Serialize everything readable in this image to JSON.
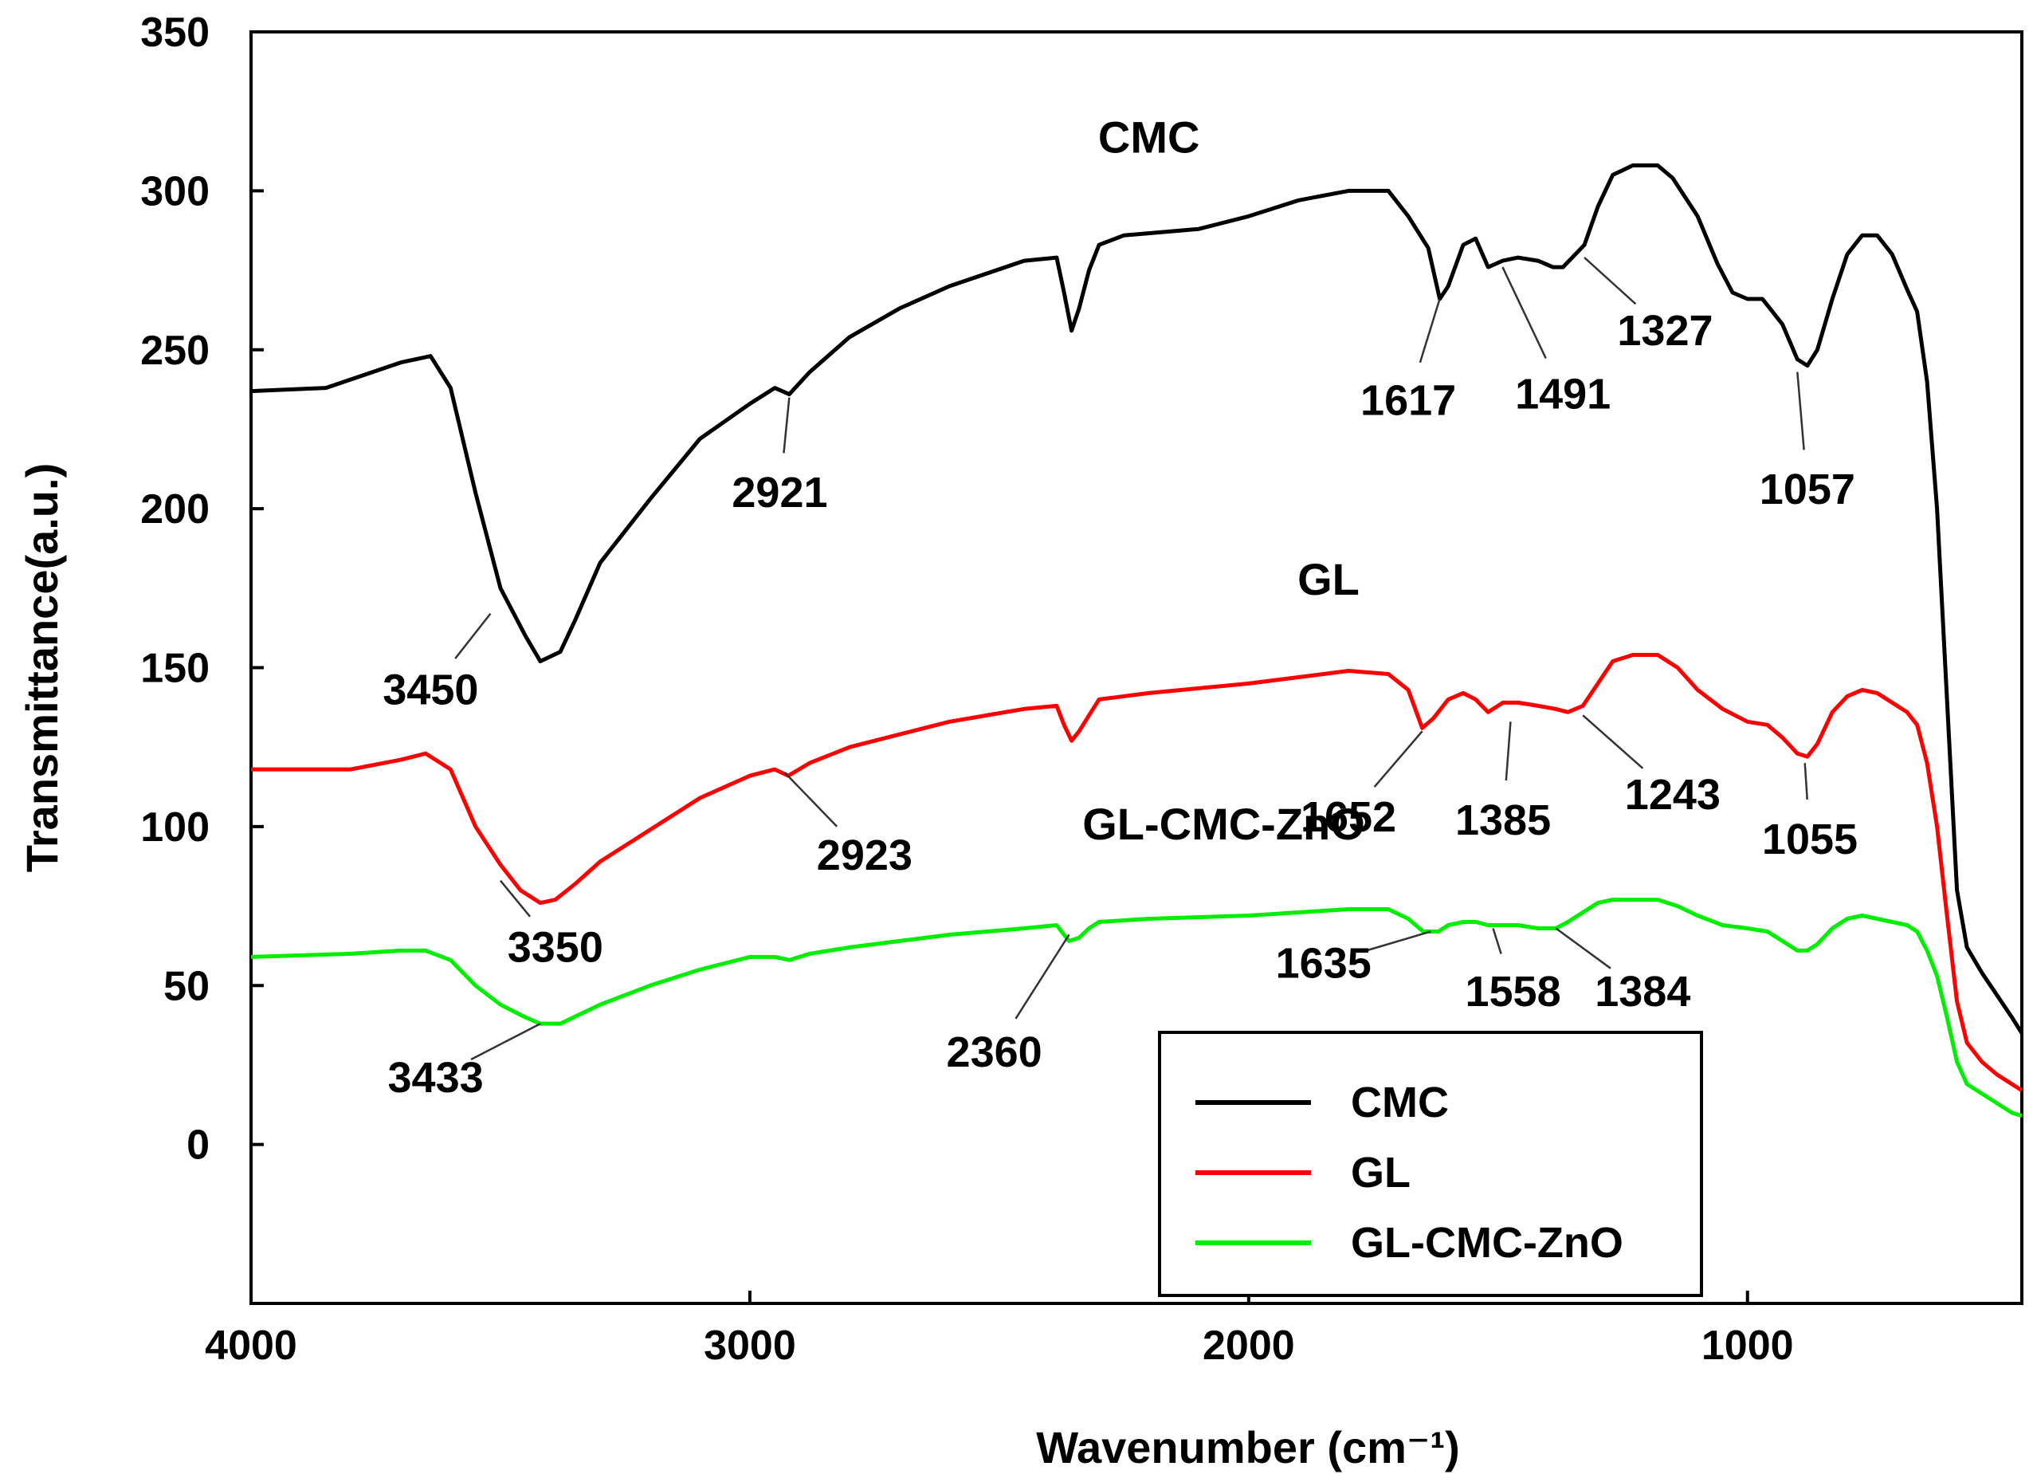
{
  "chart_data": {
    "type": "line",
    "xlabel": "Wavenumber (cm⁻¹)",
    "ylabel": "Transmittance(a.u.)",
    "xlim": [
      4000,
      450
    ],
    "ylim": [
      -50,
      350
    ],
    "x_ticks": [
      4000,
      3000,
      2000,
      1000
    ],
    "y_ticks": [
      0,
      50,
      100,
      150,
      200,
      250,
      300,
      350
    ],
    "legend": {
      "position": "bottom-right",
      "entries": [
        {
          "label": "CMC",
          "color": "#000000"
        },
        {
          "label": "GL",
          "color": "#ff0000"
        },
        {
          "label": "GL-CMC-ZnO",
          "color": "#00ee00"
        }
      ]
    },
    "series": [
      {
        "name": "CMC",
        "color": "#000000",
        "points": [
          [
            4000,
            237
          ],
          [
            3850,
            238
          ],
          [
            3700,
            246
          ],
          [
            3640,
            248
          ],
          [
            3600,
            238
          ],
          [
            3550,
            205
          ],
          [
            3500,
            175
          ],
          [
            3450,
            160
          ],
          [
            3420,
            152
          ],
          [
            3380,
            155
          ],
          [
            3350,
            165
          ],
          [
            3300,
            183
          ],
          [
            3200,
            203
          ],
          [
            3100,
            222
          ],
          [
            3000,
            233
          ],
          [
            2950,
            238
          ],
          [
            2921,
            236
          ],
          [
            2880,
            243
          ],
          [
            2800,
            254
          ],
          [
            2700,
            263
          ],
          [
            2600,
            270
          ],
          [
            2450,
            278
          ],
          [
            2385,
            279
          ],
          [
            2370,
            268
          ],
          [
            2355,
            256
          ],
          [
            2340,
            263
          ],
          [
            2320,
            275
          ],
          [
            2300,
            283
          ],
          [
            2250,
            286
          ],
          [
            2100,
            288
          ],
          [
            2000,
            292
          ],
          [
            1900,
            297
          ],
          [
            1800,
            300
          ],
          [
            1720,
            300
          ],
          [
            1680,
            292
          ],
          [
            1640,
            282
          ],
          [
            1617,
            266
          ],
          [
            1600,
            270
          ],
          [
            1570,
            283
          ],
          [
            1545,
            285
          ],
          [
            1520,
            276
          ],
          [
            1491,
            278
          ],
          [
            1460,
            279
          ],
          [
            1420,
            278
          ],
          [
            1390,
            276
          ],
          [
            1370,
            276
          ],
          [
            1327,
            283
          ],
          [
            1300,
            295
          ],
          [
            1270,
            305
          ],
          [
            1230,
            308
          ],
          [
            1180,
            308
          ],
          [
            1150,
            304
          ],
          [
            1100,
            292
          ],
          [
            1060,
            277
          ],
          [
            1030,
            268
          ],
          [
            1000,
            266
          ],
          [
            970,
            266
          ],
          [
            930,
            258
          ],
          [
            900,
            247
          ],
          [
            880,
            245
          ],
          [
            860,
            250
          ],
          [
            830,
            266
          ],
          [
            800,
            280
          ],
          [
            770,
            286
          ],
          [
            740,
            286
          ],
          [
            710,
            280
          ],
          [
            680,
            269
          ],
          [
            660,
            262
          ],
          [
            640,
            240
          ],
          [
            620,
            200
          ],
          [
            600,
            140
          ],
          [
            580,
            80
          ],
          [
            560,
            62
          ],
          [
            530,
            54
          ],
          [
            500,
            47
          ],
          [
            470,
            40
          ],
          [
            450,
            35
          ]
        ]
      },
      {
        "name": "GL",
        "color": "#ff0000",
        "points": [
          [
            4000,
            118
          ],
          [
            3800,
            118
          ],
          [
            3700,
            121
          ],
          [
            3650,
            123
          ],
          [
            3600,
            118
          ],
          [
            3550,
            100
          ],
          [
            3500,
            88
          ],
          [
            3460,
            80
          ],
          [
            3420,
            76
          ],
          [
            3390,
            77
          ],
          [
            3350,
            82
          ],
          [
            3300,
            89
          ],
          [
            3200,
            99
          ],
          [
            3100,
            109
          ],
          [
            3000,
            116
          ],
          [
            2950,
            118
          ],
          [
            2923,
            116
          ],
          [
            2880,
            120
          ],
          [
            2800,
            125
          ],
          [
            2700,
            129
          ],
          [
            2600,
            133
          ],
          [
            2450,
            137
          ],
          [
            2385,
            138
          ],
          [
            2370,
            132
          ],
          [
            2355,
            127
          ],
          [
            2340,
            130
          ],
          [
            2320,
            135
          ],
          [
            2300,
            140
          ],
          [
            2200,
            142
          ],
          [
            2000,
            145
          ],
          [
            1900,
            147
          ],
          [
            1800,
            149
          ],
          [
            1720,
            148
          ],
          [
            1680,
            143
          ],
          [
            1652,
            131
          ],
          [
            1630,
            134
          ],
          [
            1600,
            140
          ],
          [
            1570,
            142
          ],
          [
            1545,
            140
          ],
          [
            1520,
            136
          ],
          [
            1490,
            139
          ],
          [
            1460,
            139
          ],
          [
            1420,
            138
          ],
          [
            1385,
            137
          ],
          [
            1360,
            136
          ],
          [
            1330,
            138
          ],
          [
            1300,
            145
          ],
          [
            1270,
            152
          ],
          [
            1230,
            154
          ],
          [
            1180,
            154
          ],
          [
            1140,
            150
          ],
          [
            1100,
            143
          ],
          [
            1050,
            137
          ],
          [
            1000,
            133
          ],
          [
            960,
            132
          ],
          [
            930,
            128
          ],
          [
            900,
            123
          ],
          [
            880,
            122
          ],
          [
            860,
            126
          ],
          [
            830,
            136
          ],
          [
            800,
            141
          ],
          [
            770,
            143
          ],
          [
            740,
            142
          ],
          [
            710,
            139
          ],
          [
            680,
            136
          ],
          [
            660,
            132
          ],
          [
            640,
            120
          ],
          [
            620,
            100
          ],
          [
            600,
            72
          ],
          [
            580,
            45
          ],
          [
            560,
            32
          ],
          [
            530,
            26
          ],
          [
            500,
            22
          ],
          [
            470,
            19
          ],
          [
            450,
            17
          ]
        ]
      },
      {
        "name": "GL-CMC-ZnO",
        "color": "#00ee00",
        "points": [
          [
            4000,
            59
          ],
          [
            3800,
            60
          ],
          [
            3700,
            61
          ],
          [
            3650,
            61
          ],
          [
            3600,
            58
          ],
          [
            3550,
            50
          ],
          [
            3500,
            44
          ],
          [
            3450,
            40
          ],
          [
            3420,
            38
          ],
          [
            3380,
            38
          ],
          [
            3340,
            41
          ],
          [
            3300,
            44
          ],
          [
            3200,
            50
          ],
          [
            3100,
            55
          ],
          [
            3000,
            59
          ],
          [
            2950,
            59
          ],
          [
            2920,
            58
          ],
          [
            2880,
            60
          ],
          [
            2800,
            62
          ],
          [
            2700,
            64
          ],
          [
            2600,
            66
          ],
          [
            2450,
            68
          ],
          [
            2385,
            69
          ],
          [
            2370,
            66
          ],
          [
            2360,
            64
          ],
          [
            2340,
            65
          ],
          [
            2320,
            68
          ],
          [
            2300,
            70
          ],
          [
            2200,
            71
          ],
          [
            2000,
            72
          ],
          [
            1900,
            73
          ],
          [
            1800,
            74
          ],
          [
            1720,
            74
          ],
          [
            1680,
            71
          ],
          [
            1650,
            67
          ],
          [
            1635,
            67
          ],
          [
            1620,
            67
          ],
          [
            1600,
            69
          ],
          [
            1570,
            70
          ],
          [
            1545,
            70
          ],
          [
            1520,
            69
          ],
          [
            1490,
            69
          ],
          [
            1460,
            69
          ],
          [
            1420,
            68
          ],
          [
            1384,
            68
          ],
          [
            1360,
            70
          ],
          [
            1330,
            73
          ],
          [
            1300,
            76
          ],
          [
            1270,
            77
          ],
          [
            1230,
            77
          ],
          [
            1180,
            77
          ],
          [
            1140,
            75
          ],
          [
            1100,
            72
          ],
          [
            1050,
            69
          ],
          [
            1000,
            68
          ],
          [
            960,
            67
          ],
          [
            930,
            64
          ],
          [
            900,
            61
          ],
          [
            880,
            61
          ],
          [
            860,
            63
          ],
          [
            830,
            68
          ],
          [
            800,
            71
          ],
          [
            770,
            72
          ],
          [
            740,
            71
          ],
          [
            710,
            70
          ],
          [
            680,
            69
          ],
          [
            660,
            67
          ],
          [
            640,
            61
          ],
          [
            620,
            53
          ],
          [
            600,
            40
          ],
          [
            580,
            26
          ],
          [
            560,
            19
          ],
          [
            530,
            16
          ],
          [
            500,
            13
          ],
          [
            470,
            10
          ],
          [
            450,
            9
          ]
        ]
      }
    ],
    "series_labels": [
      {
        "text": "CMC",
        "x": 2200,
        "y": 312
      },
      {
        "text": "GL",
        "x": 1840,
        "y": 173
      },
      {
        "text": "GL-CMC-ZnO",
        "x": 2050,
        "y": 96
      }
    ],
    "annotations": [
      {
        "text": "3450",
        "peak": [
          3520,
          167
        ],
        "label": [
          3640,
          143
        ]
      },
      {
        "text": "2921",
        "peak": [
          2921,
          235
        ],
        "label": [
          2940,
          205
        ]
      },
      {
        "text": "1617",
        "peak": [
          1617,
          266
        ],
        "label": [
          1680,
          234
        ]
      },
      {
        "text": "1491",
        "peak": [
          1491,
          276
        ],
        "label": [
          1370,
          236
        ]
      },
      {
        "text": "1327",
        "peak": [
          1327,
          279
        ],
        "label": [
          1165,
          256
        ]
      },
      {
        "text": "1057",
        "peak": [
          900,
          243
        ],
        "label": [
          880,
          206
        ]
      },
      {
        "text": "1652",
        "peak": [
          1652,
          130
        ],
        "label": [
          1800,
          103
        ]
      },
      {
        "text": "1385",
        "peak": [
          1475,
          133
        ],
        "label": [
          1490,
          102
        ]
      },
      {
        "text": "1243",
        "peak": [
          1330,
          135
        ],
        "label": [
          1150,
          110
        ]
      },
      {
        "text": "1055",
        "peak": [
          885,
          120
        ],
        "label": [
          875,
          96
        ]
      },
      {
        "text": "3350",
        "peak": [
          3500,
          83
        ],
        "label": [
          3390,
          62
        ]
      },
      {
        "text": "2923",
        "peak": [
          2930,
          117
        ],
        "label": [
          2770,
          91
        ]
      },
      {
        "text": "1635",
        "peak": [
          1635,
          67
        ],
        "label": [
          1850,
          57
        ]
      },
      {
        "text": "1558",
        "peak": [
          1510,
          68
        ],
        "label": [
          1470,
          48
        ]
      },
      {
        "text": "1384",
        "peak": [
          1384,
          68
        ],
        "label": [
          1210,
          48
        ]
      },
      {
        "text": "3433",
        "peak": [
          3420,
          38
        ],
        "label": [
          3630,
          21
        ]
      },
      {
        "text": "2360",
        "peak": [
          2360,
          66
        ],
        "label": [
          2510,
          29
        ]
      }
    ]
  }
}
